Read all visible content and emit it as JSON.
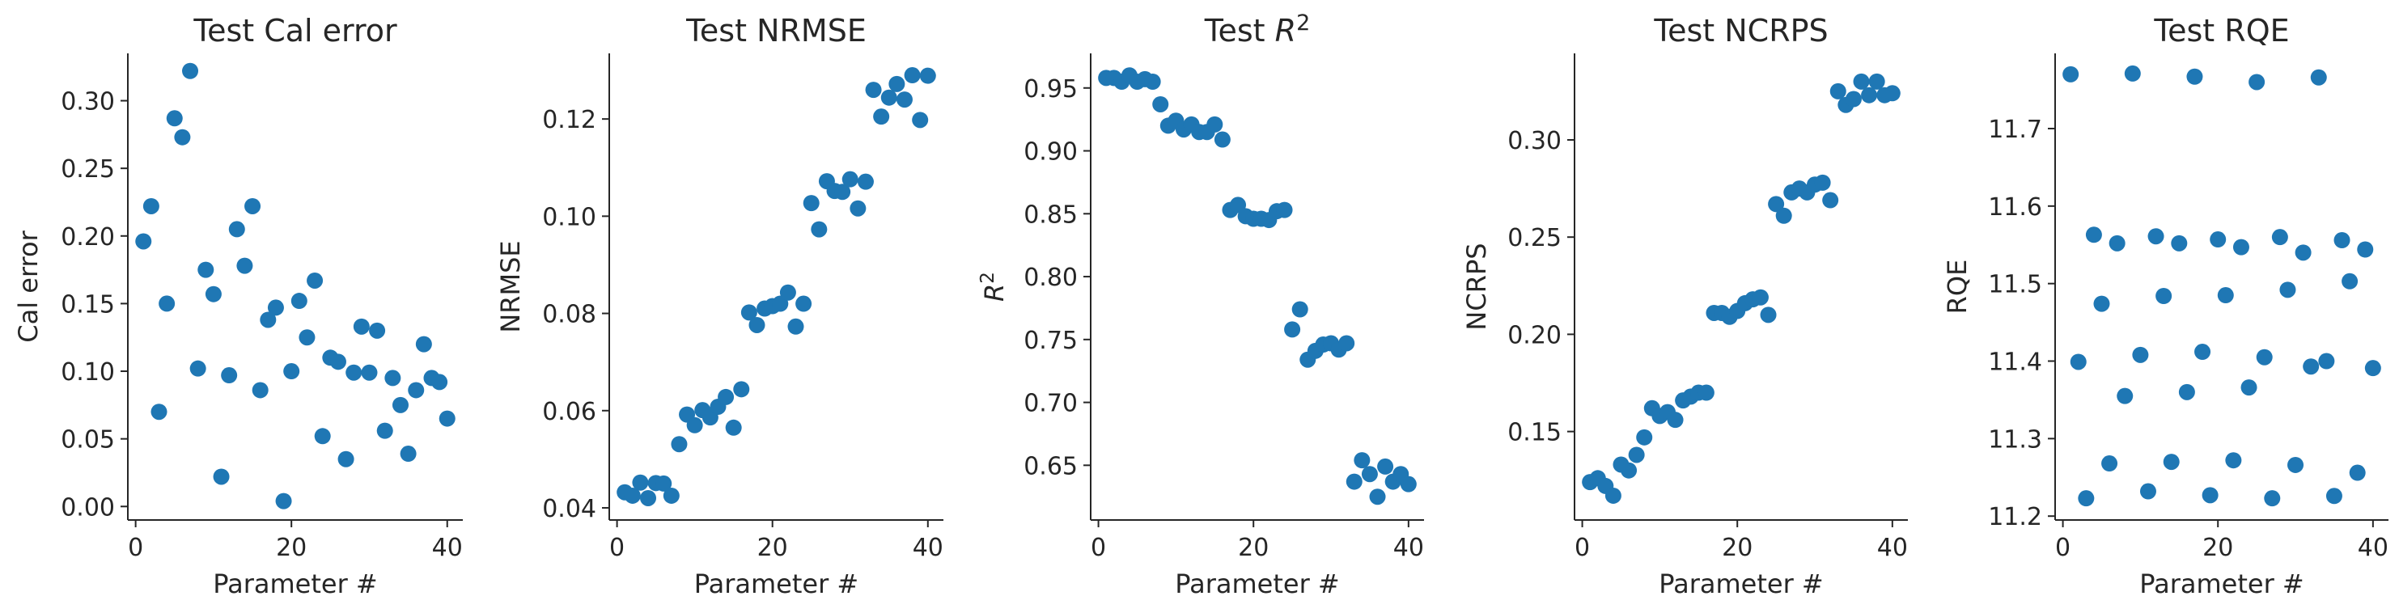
{
  "chart_data": [
    {
      "type": "scatter",
      "title": "Test Cal error",
      "xlabel": "Parameter #",
      "ylabel": "Cal error",
      "xlim": [
        -1,
        42
      ],
      "ylim": [
        -0.01,
        0.335
      ],
      "xticks": [
        0,
        20,
        40
      ],
      "xtick_labels": [
        "0",
        "20",
        "40"
      ],
      "yticks": [
        0.0,
        0.05,
        0.1,
        0.15,
        0.2,
        0.25,
        0.3
      ],
      "ytick_labels": [
        "0.00",
        "0.05",
        "0.10",
        "0.15",
        "0.20",
        "0.25",
        "0.30"
      ],
      "grid": false,
      "series": [
        {
          "x": [
            1,
            2,
            3,
            4,
            5,
            6,
            7,
            8,
            9,
            10,
            11,
            12,
            13,
            14,
            15,
            16,
            17,
            18,
            19,
            20,
            21,
            22,
            23,
            24,
            25,
            26,
            27,
            28,
            29,
            30,
            31,
            32,
            33,
            34,
            35,
            36,
            37,
            38,
            39,
            40
          ],
          "y": [
            0.196,
            0.222,
            0.07,
            0.15,
            0.287,
            0.273,
            0.322,
            0.102,
            0.175,
            0.157,
            0.022,
            0.097,
            0.205,
            0.178,
            0.222,
            0.086,
            0.138,
            0.147,
            0.004,
            0.1,
            0.152,
            0.125,
            0.167,
            0.052,
            0.11,
            0.107,
            0.035,
            0.099,
            0.133,
            0.099,
            0.13,
            0.056,
            0.095,
            0.075,
            0.039,
            0.086,
            0.12,
            0.095,
            0.092,
            0.065
          ]
        }
      ]
    },
    {
      "type": "scatter",
      "title": "Test NRMSE",
      "xlabel": "Parameter #",
      "ylabel": "NRMSE",
      "xlim": [
        -1,
        42
      ],
      "ylim": [
        0.0375,
        0.1335
      ],
      "xticks": [
        0,
        20,
        40
      ],
      "xtick_labels": [
        "0",
        "20",
        "40"
      ],
      "yticks": [
        0.04,
        0.06,
        0.08,
        0.1,
        0.12
      ],
      "ytick_labels": [
        "0.04",
        "0.06",
        "0.08",
        "0.10",
        "0.12"
      ],
      "grid": false,
      "series": [
        {
          "x": [
            1,
            2,
            3,
            4,
            5,
            6,
            7,
            8,
            9,
            10,
            11,
            12,
            13,
            14,
            15,
            16,
            17,
            18,
            19,
            20,
            21,
            22,
            23,
            24,
            25,
            26,
            27,
            28,
            29,
            30,
            31,
            32,
            33,
            34,
            35,
            36,
            37,
            38,
            39,
            40
          ],
          "y": [
            0.0432,
            0.0425,
            0.0452,
            0.042,
            0.0451,
            0.045,
            0.0425,
            0.0531,
            0.0592,
            0.057,
            0.0601,
            0.0586,
            0.0608,
            0.0628,
            0.0565,
            0.0644,
            0.0802,
            0.0776,
            0.081,
            0.0815,
            0.082,
            0.0843,
            0.0773,
            0.082,
            0.1027,
            0.0973,
            0.1072,
            0.1052,
            0.105,
            0.1076,
            0.1016,
            0.1071,
            0.126,
            0.1205,
            0.1244,
            0.1272,
            0.124,
            0.129,
            0.1198,
            0.1289
          ]
        }
      ]
    },
    {
      "type": "scatter",
      "title": "Test R²",
      "xlabel": "Parameter #",
      "ylabel": "R²",
      "xlim": [
        -1,
        42
      ],
      "ylim": [
        0.6065,
        0.9775
      ],
      "xticks": [
        0,
        20,
        40
      ],
      "xtick_labels": [
        "0",
        "20",
        "40"
      ],
      "yticks": [
        0.65,
        0.7,
        0.75,
        0.8,
        0.85,
        0.9,
        0.95
      ],
      "ytick_labels": [
        "0.65",
        "0.70",
        "0.75",
        "0.80",
        "0.85",
        "0.90",
        "0.95"
      ],
      "grid": false,
      "series": [
        {
          "x": [
            1,
            2,
            3,
            4,
            5,
            6,
            7,
            8,
            9,
            10,
            11,
            12,
            13,
            14,
            15,
            16,
            17,
            18,
            19,
            20,
            21,
            22,
            23,
            24,
            25,
            26,
            27,
            28,
            29,
            30,
            31,
            32,
            33,
            34,
            35,
            36,
            37,
            38,
            39,
            40
          ],
          "y": [
            0.958,
            0.958,
            0.955,
            0.96,
            0.955,
            0.957,
            0.955,
            0.937,
            0.92,
            0.924,
            0.917,
            0.921,
            0.915,
            0.915,
            0.921,
            0.909,
            0.853,
            0.857,
            0.848,
            0.846,
            0.846,
            0.845,
            0.852,
            0.853,
            0.758,
            0.774,
            0.734,
            0.741,
            0.746,
            0.747,
            0.742,
            0.747,
            0.637,
            0.654,
            0.643,
            0.625,
            0.649,
            0.637,
            0.643,
            0.635
          ]
        }
      ]
    },
    {
      "type": "scatter",
      "title": "Test NCRPS",
      "xlabel": "Parameter #",
      "ylabel": "NCRPS",
      "xlim": [
        -1,
        42
      ],
      "ylim": [
        0.1045,
        0.3445
      ],
      "xticks": [
        0,
        20,
        40
      ],
      "xtick_labels": [
        "0",
        "20",
        "40"
      ],
      "yticks": [
        0.15,
        0.2,
        0.25,
        0.3
      ],
      "ytick_labels": [
        "0.15",
        "0.20",
        "0.25",
        "0.30"
      ],
      "grid": false,
      "series": [
        {
          "x": [
            1,
            2,
            3,
            4,
            5,
            6,
            7,
            8,
            9,
            10,
            11,
            12,
            13,
            14,
            15,
            16,
            17,
            18,
            19,
            20,
            21,
            22,
            23,
            24,
            25,
            26,
            27,
            28,
            29,
            30,
            31,
            32,
            33,
            34,
            35,
            36,
            37,
            38,
            39,
            40
          ],
          "y": [
            0.124,
            0.126,
            0.122,
            0.117,
            0.133,
            0.13,
            0.138,
            0.147,
            0.162,
            0.158,
            0.16,
            0.156,
            0.166,
            0.168,
            0.17,
            0.17,
            0.211,
            0.211,
            0.209,
            0.212,
            0.216,
            0.218,
            0.219,
            0.21,
            0.267,
            0.261,
            0.273,
            0.275,
            0.273,
            0.277,
            0.278,
            0.269,
            0.325,
            0.318,
            0.321,
            0.33,
            0.323,
            0.33,
            0.323,
            0.324
          ]
        }
      ]
    },
    {
      "type": "scatter",
      "title": "Test RQE",
      "xlabel": "Parameter #",
      "ylabel": "RQE",
      "xlim": [
        -1,
        42
      ],
      "ylim": [
        11.195,
        11.797
      ],
      "xticks": [
        0,
        20,
        40
      ],
      "xtick_labels": [
        "0",
        "20",
        "40"
      ],
      "yticks": [
        11.2,
        11.3,
        11.4,
        11.5,
        11.6,
        11.7
      ],
      "ytick_labels": [
        "11.2",
        "11.3",
        "11.4",
        "11.5",
        "11.6",
        "11.7"
      ],
      "grid": false,
      "series": [
        {
          "x": [
            1,
            2,
            3,
            4,
            5,
            6,
            7,
            8,
            9,
            10,
            11,
            12,
            13,
            14,
            15,
            16,
            17,
            18,
            19,
            20,
            21,
            22,
            23,
            24,
            25,
            26,
            27,
            28,
            29,
            30,
            31,
            32,
            33,
            34,
            35,
            36,
            37,
            38,
            39,
            40
          ],
          "y": [
            11.77,
            11.399,
            11.223,
            11.563,
            11.474,
            11.268,
            11.552,
            11.355,
            11.771,
            11.408,
            11.232,
            11.561,
            11.484,
            11.27,
            11.552,
            11.36,
            11.767,
            11.412,
            11.227,
            11.557,
            11.485,
            11.272,
            11.547,
            11.366,
            11.76,
            11.405,
            11.223,
            11.56,
            11.492,
            11.266,
            11.54,
            11.393,
            11.766,
            11.4,
            11.226,
            11.556,
            11.503,
            11.256,
            11.544,
            11.391
          ]
        }
      ]
    }
  ]
}
